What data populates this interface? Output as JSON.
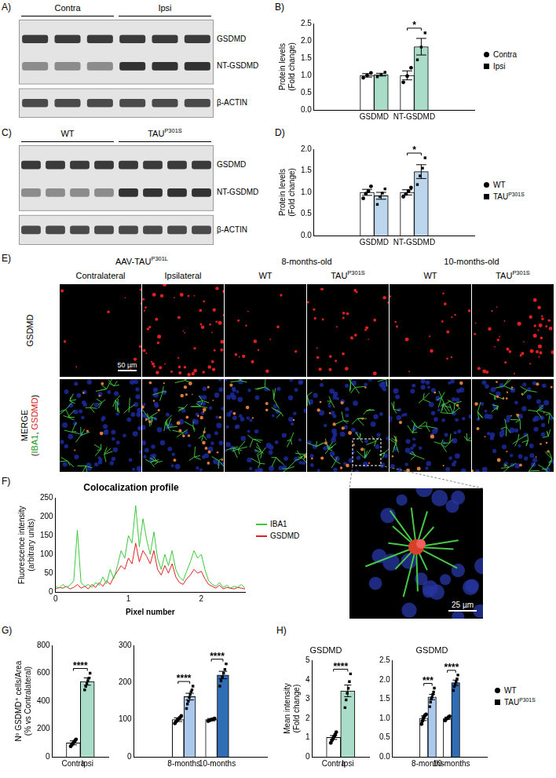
{
  "figure": {
    "blots": [
      {
        "panel": "A)",
        "groups": [
          {
            "label": "Contra",
            "lanes": 3
          },
          {
            "label": "Ipsi",
            "lanes": 3
          }
        ],
        "bands": [
          "GSDMD",
          "NT-GSDMD"
        ],
        "loading": "β-ACTIN"
      },
      {
        "panel": "C)",
        "groups": [
          {
            "label": "WT",
            "lanes": 4
          },
          {
            "label": {
              "text": "TAU",
              "sup": "P301S"
            },
            "lanes": 4
          }
        ],
        "bands": [
          "GSDMD",
          "NT-GSDMD"
        ],
        "loading": "β-ACTIN"
      }
    ],
    "micrographs": {
      "panel": "E)",
      "groups": [
        {
          "label": {
            "text": "AAV-TAU",
            "sup": "P301L"
          },
          "columns": [
            "Contralateral",
            "Ipsilateral"
          ]
        },
        {
          "label": "8-months-old",
          "columns": [
            "WT",
            {
              "text": "TAU",
              "sup": "P301S"
            }
          ]
        },
        {
          "label": "10-months-old",
          "columns": [
            "WT",
            {
              "text": "TAU",
              "sup": "P301S"
            }
          ]
        }
      ],
      "rows": [
        {
          "label_lines": [
            [
              {
                "text": "GSDMD",
                "color": "#000000"
              }
            ]
          ]
        },
        {
          "label_lines": [
            [
              {
                "text": "MERGE",
                "color": "#000000"
              }
            ],
            [
              {
                "text": "(",
                "color": "#000000"
              },
              {
                "text": "IBA1",
                "color": "#1a9a1a"
              },
              {
                "text": ", ",
                "color": "#000000"
              },
              {
                "text": "GSDMD",
                "color": "#d81b1b"
              },
              {
                "text": ")",
                "color": "#000000"
              }
            ]
          ]
        }
      ],
      "scale_bar": "50 µm",
      "inset": {
        "scale_bar": "25 µm"
      }
    }
  },
  "chart_data": [
    {
      "panel": "B)",
      "type": "bar",
      "categories": [
        "GSDMD",
        "NT-GSDMD"
      ],
      "series": [
        {
          "name": "Contra",
          "color": "#ffffff",
          "marker": "circle",
          "values": [
            1.0,
            1.0
          ],
          "errors": [
            0.05,
            0.13
          ],
          "points": [
            [
              0.93,
              1.0,
              1.07
            ],
            [
              0.8,
              0.98,
              1.22
            ]
          ]
        },
        {
          "name": "Ipsi",
          "color": "#a9dcc9",
          "marker": "square",
          "values": [
            1.02,
            1.83
          ],
          "errors": [
            0.04,
            0.24
          ],
          "points": [
            [
              0.96,
              1.02,
              1.09
            ],
            [
              1.45,
              1.82,
              2.23
            ]
          ]
        }
      ],
      "ylabel": [
        "Protein levels",
        "(Fold change)"
      ],
      "ylim": [
        0,
        2.5
      ],
      "yticks": [
        {
          "value": 0,
          "label": "0.0"
        },
        0.5,
        {
          "value": 1,
          "label": "1.0"
        },
        1.5,
        {
          "value": 2,
          "label": "2.0"
        },
        2.5
      ],
      "significance": [
        {
          "categories": [
            "NT-GSDMD"
          ],
          "text": "*"
        }
      ],
      "legend": "right",
      "grid": false
    },
    {
      "panel": "D)",
      "type": "bar",
      "categories": [
        "GSDMD",
        "NT-GSDMD"
      ],
      "series": [
        {
          "name": "WT",
          "color": "#ffffff",
          "marker": "circle",
          "values": [
            1.0,
            1.0
          ],
          "errors": [
            0.07,
            0.06
          ],
          "points": [
            [
              0.86,
              0.97,
              1.03,
              1.14
            ],
            [
              0.9,
              0.96,
              1.03,
              1.11
            ]
          ]
        },
        {
          "name": {
            "text": "TAU",
            "sup": "P301S"
          },
          "color": "#bcd6ee",
          "marker": "square",
          "values": [
            0.92,
            1.48
          ],
          "errors": [
            0.08,
            0.16
          ],
          "points": [
            [
              0.72,
              0.9,
              0.98,
              1.08
            ],
            [
              1.18,
              1.38,
              1.56,
              1.8
            ]
          ]
        }
      ],
      "ylabel": [
        "Protein levels",
        "(Fold change)"
      ],
      "ylim": [
        0,
        2.0
      ],
      "yticks": [
        {
          "value": 0,
          "label": "0.0"
        },
        0.5,
        {
          "value": 1,
          "label": "1.0"
        },
        1.5,
        {
          "value": 2,
          "label": "2.0"
        }
      ],
      "significance": [
        {
          "categories": [
            "NT-GSDMD"
          ],
          "text": "*"
        }
      ],
      "legend": "right",
      "grid": false
    },
    {
      "panel": "F)",
      "type": "line",
      "title": "Colocalization profile",
      "xlabel": "Pixel number",
      "ylabel": [
        "Fluorescence intensity",
        "(arbitrary units)"
      ],
      "x": [
        0,
        0.05,
        0.1,
        0.15,
        0.2,
        0.25,
        0.3,
        0.35,
        0.4,
        0.45,
        0.5,
        0.55,
        0.6,
        0.65,
        0.7,
        0.75,
        0.8,
        0.85,
        0.9,
        0.95,
        1,
        1.05,
        1.1,
        1.15,
        1.2,
        1.25,
        1.3,
        1.35,
        1.4,
        1.45,
        1.5,
        1.55,
        1.6,
        1.65,
        1.7,
        1.75,
        1.8,
        1.85,
        1.9,
        1.95,
        2,
        2.05,
        2.1,
        2.15,
        2.2,
        2.25,
        2.3,
        2.35,
        2.4,
        2.45,
        2.5,
        2.55,
        2.6
      ],
      "series": [
        {
          "name": "IBA1",
          "color": "#3cc83c",
          "values": [
            15,
            10,
            20,
            12,
            18,
            30,
            165,
            25,
            15,
            20,
            12,
            25,
            18,
            40,
            22,
            60,
            35,
            70,
            110,
            90,
            150,
            130,
            230,
            120,
            195,
            140,
            100,
            160,
            90,
            60,
            100,
            70,
            110,
            60,
            40,
            30,
            55,
            80,
            110,
            90,
            100,
            60,
            30,
            20,
            15,
            25,
            12,
            18,
            10,
            15,
            12,
            20,
            10
          ]
        },
        {
          "name": "GSDMD",
          "color": "#e02020",
          "values": [
            8,
            12,
            10,
            15,
            8,
            12,
            20,
            10,
            15,
            8,
            20,
            12,
            25,
            15,
            30,
            20,
            40,
            55,
            70,
            60,
            90,
            75,
            130,
            80,
            110,
            95,
            75,
            110,
            60,
            45,
            70,
            50,
            75,
            40,
            25,
            20,
            35,
            45,
            60,
            50,
            55,
            35,
            20,
            15,
            10,
            18,
            8,
            12,
            10,
            8,
            12,
            10,
            8
          ]
        }
      ],
      "xlim": [
        0,
        2.6
      ],
      "xticks": [
        0,
        1,
        2
      ],
      "ylim": [
        0,
        250
      ],
      "yticks": [
        0,
        50,
        100,
        150,
        200,
        250
      ],
      "legend": "right",
      "grid": false
    },
    {
      "panel": "G)",
      "type": "bar",
      "categories": [
        "Contra",
        "Ipsi"
      ],
      "series": [
        {
          "name": "Contra",
          "color": "#ffffff",
          "marker": "circle",
          "values": [
            100,
            null
          ],
          "errors": [
            14,
            null
          ],
          "points": [
            [
              75,
              85,
              95,
              105,
              115,
              125
            ],
            null
          ]
        },
        {
          "name": "Ipsi",
          "color": "#a9dcc9",
          "marker": "square",
          "values": [
            null,
            540
          ],
          "errors": [
            null,
            26
          ],
          "points": [
            null,
            [
              480,
              505,
              525,
              545,
              565,
              600
            ]
          ]
        }
      ],
      "ylabel": [
        "Nº GSDMD⁺ cells/Area",
        "(% vs Contralateral)"
      ],
      "ylim": [
        0,
        800
      ],
      "yticks": [
        0,
        200,
        400,
        600,
        800
      ],
      "significance": [
        {
          "categories": [
            "Contra",
            "Ipsi"
          ],
          "text": "****"
        }
      ],
      "grid": false
    },
    {
      "type": "bar",
      "categories": [
        "8-months",
        "10-months"
      ],
      "series": [
        {
          "name": "WT",
          "color": "#ffffff",
          "marker": "circle",
          "values": [
            100,
            100
          ],
          "errors": [
            5,
            3
          ],
          "points": [
            [
              90,
              95,
              99,
              102,
              106,
              110
            ],
            [
              96,
              98,
              100,
              101,
              103
            ]
          ]
        },
        {
          "name": {
            "text": "TAU",
            "sup": "P301S"
          },
          "colors": [
            "#a9c8ec",
            "#2f6db4"
          ],
          "marker": "square",
          "values": [
            162,
            220
          ],
          "errors": [
            9,
            10
          ],
          "points": [
            [
              130,
              142,
              150,
              160,
              168,
              175,
              180,
              190
            ],
            [
              190,
              205,
              215,
              225,
              235,
              250
            ]
          ]
        }
      ],
      "ylim": [
        0,
        300
      ],
      "yticks": [
        0,
        100,
        200,
        300
      ],
      "significance": [
        {
          "categories": [
            "8-months"
          ],
          "text": "****"
        },
        {
          "categories": [
            "10-months"
          ],
          "text": "****"
        }
      ],
      "grid": false
    },
    {
      "panel": "H)",
      "type": "bar",
      "title": "GSDMD",
      "categories": [
        "Contra",
        "Ipsi"
      ],
      "series": [
        {
          "name": "Contra",
          "color": "#ffffff",
          "marker": "circle",
          "values": [
            1.0,
            null
          ],
          "errors": [
            0.1,
            null
          ],
          "points": [
            [
              0.72,
              0.85,
              0.95,
              1.05,
              1.15,
              1.28
            ],
            null
          ]
        },
        {
          "name": "Ipsi",
          "color": "#a9dcc9",
          "marker": "square",
          "values": [
            null,
            3.42
          ],
          "errors": [
            null,
            0.3
          ],
          "points": [
            null,
            [
              2.55,
              2.95,
              3.3,
              3.55,
              3.9,
              4.3
            ]
          ]
        }
      ],
      "ylabel": [
        "Mean intensity",
        "(Fold change)"
      ],
      "ylim": [
        0,
        5
      ],
      "yticks": [
        0,
        1,
        2,
        3,
        4,
        5
      ],
      "significance": [
        {
          "categories": [
            "Contra",
            "Ipsi"
          ],
          "text": "****"
        }
      ],
      "grid": false
    },
    {
      "type": "bar",
      "title": "GSDMD",
      "categories": [
        "8-months",
        "10-months"
      ],
      "series": [
        {
          "name": "WT",
          "color": "#ffffff",
          "marker": "circle",
          "values": [
            1.0,
            1.0
          ],
          "errors": [
            0.06,
            0.03
          ],
          "points": [
            [
              0.85,
              0.93,
              1.0,
              1.05,
              1.08,
              1.1
            ],
            [
              0.94,
              0.98,
              1.0,
              1.03,
              1.05
            ]
          ]
        },
        {
          "name": {
            "text": "TAU",
            "sup": "P301S"
          },
          "colors": [
            "#a9c8ec",
            "#2f6db4"
          ],
          "marker": "square",
          "values": [
            1.55,
            1.92
          ],
          "errors": [
            0.07,
            0.07
          ],
          "points": [
            [
              1.3,
              1.42,
              1.5,
              1.55,
              1.62,
              1.68,
              1.78
            ],
            [
              1.72,
              1.82,
              1.88,
              1.95,
              2.02,
              2.12
            ]
          ]
        }
      ],
      "ylim": [
        0,
        2.5
      ],
      "yticks": [
        {
          "value": 0,
          "label": "0.0"
        },
        0.5,
        {
          "value": 1,
          "label": "1.0"
        },
        1.5,
        {
          "value": 2,
          "label": "2.0"
        },
        2.5
      ],
      "significance": [
        {
          "categories": [
            "8-months"
          ],
          "text": "***"
        },
        {
          "categories": [
            "10-months"
          ],
          "text": "****"
        }
      ],
      "legend": "right",
      "grid": false
    }
  ]
}
